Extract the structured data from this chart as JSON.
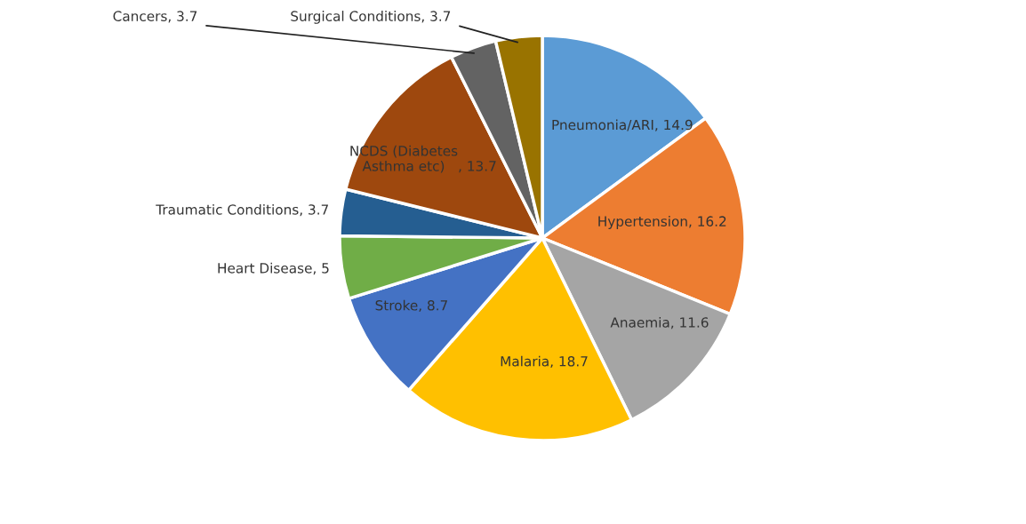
{
  "chart_data": {
    "type": "pie",
    "categories": [
      "Pneumonia/ARI",
      "Hypertension",
      "Anaemia",
      "Malaria",
      "Stroke",
      "Heart Disease",
      "Traumatic Conditions",
      "NCDS (Diabetes Asthma etc)",
      "Cancers",
      "Surgical Conditions"
    ],
    "values": [
      14.9,
      16.2,
      11.6,
      18.7,
      8.7,
      5,
      3.7,
      13.7,
      3.7,
      3.7
    ],
    "colors": [
      "#5b9bd5",
      "#ed7d31",
      "#a5a5a5",
      "#ffc000",
      "#4472c4",
      "#70ad47",
      "#255e91",
      "#9e480e",
      "#636363",
      "#997300"
    ],
    "value_labels": [
      ", 14.9",
      ", 16.2",
      ", 11.6",
      ", 18.7",
      ", 8.7",
      ", 5",
      ", 3.7",
      ", 13.7",
      ", 3.7",
      ", 3.7"
    ]
  }
}
